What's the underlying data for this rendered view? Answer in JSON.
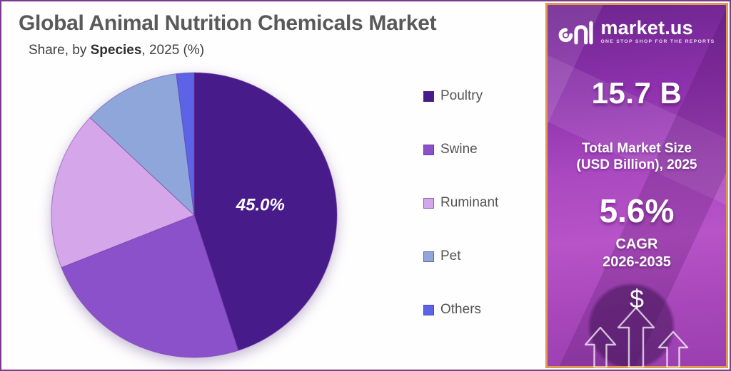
{
  "title": "Global Animal Nutrition Chemicals Market",
  "subtitle": {
    "prefix": "Share, by ",
    "emphasis": "Species",
    "suffix": ", 2025 (%)"
  },
  "chart_data": {
    "type": "pie",
    "title": "Global Animal Nutrition Chemicals Market",
    "subtitle": "Share, by Species, 2025 (%)",
    "unit": "%",
    "categories": [
      "Poultry",
      "Swine",
      "Ruminant",
      "Pet",
      "Others"
    ],
    "values": [
      45.0,
      24.0,
      18.0,
      11.0,
      2.0
    ],
    "colors": [
      "#481B8B",
      "#8B51CB",
      "#D5A6E9",
      "#8FA6DB",
      "#5C63E6"
    ],
    "start_angle_deg": 0,
    "direction": "clockwise",
    "labels": [
      {
        "index": 0,
        "text": "45.0%"
      }
    ],
    "legend_position": "right"
  },
  "legend": {
    "items": [
      {
        "label": "Poultry",
        "color": "#481B8B"
      },
      {
        "label": "Swine",
        "color": "#8B51CB"
      },
      {
        "label": "Ruminant",
        "color": "#D5A6E9"
      },
      {
        "label": "Pet",
        "color": "#8FA6DB"
      },
      {
        "label": "Others",
        "color": "#5C63E6"
      }
    ]
  },
  "panel": {
    "logo": {
      "name": "market.us",
      "tagline": "ONE STOP SHOP FOR THE REPORTS"
    },
    "market_size_value": "15.7 B",
    "market_size_label_line1": "Total Market Size",
    "market_size_label_line2": "(USD Billion), 2025",
    "cagr_value": "5.6%",
    "cagr_label_line1": "CAGR",
    "cagr_label_line2": "2026-2035",
    "dollar_symbol": "$"
  },
  "colors": {
    "frame_purple": "#7B3A8E",
    "panel_border_orange": "#DE9A4E",
    "title_gray": "#595959",
    "legend_gray": "#545454",
    "slice_stroke": "#6E3D9E"
  }
}
